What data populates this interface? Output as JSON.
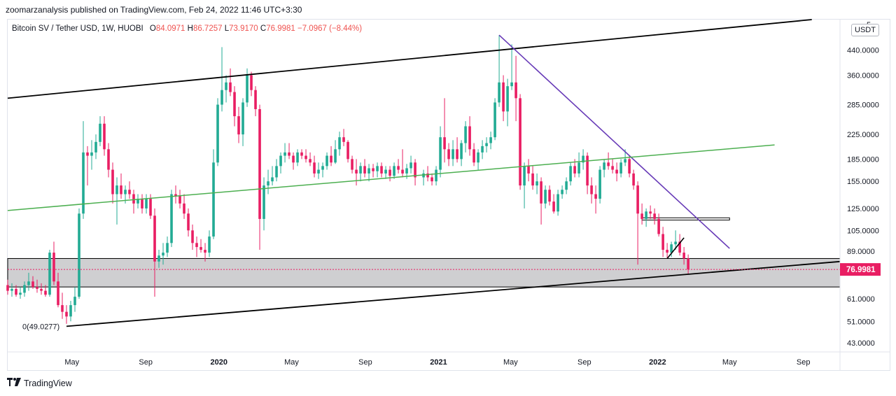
{
  "header": {
    "publisher_line": "zoomarzanalysis published on TradingView.com, Feb 24, 2022 11:46 UTC+3:30"
  },
  "legend": {
    "symbol": "Bitcoin SV / Tether USD, 1W, HUOBI",
    "open_label": "O",
    "open": "84.0971",
    "high_label": "H",
    "high": "86.7257",
    "low_label": "L",
    "low": "73.9170",
    "close_label": "C",
    "close": "76.9981",
    "change": "−7.0967 (−8.44%)"
  },
  "currency_button": "USDT",
  "footer": {
    "brand": "TradingView",
    "logo": "tradingview-logo"
  },
  "colors": {
    "up": "#22ab94",
    "down": "#ef5350",
    "downBody": "#e91e63",
    "channel": "#000000",
    "trend": "#673ab7",
    "green_line": "#4caf50",
    "zone": "#cfcfd1",
    "last_price_bg": "#e91e63"
  },
  "chart_data": {
    "type": "candlestick",
    "symbol": "Bitcoin SV / Tether USD",
    "exchange": "HUOBI",
    "interval": "1W",
    "y_scale": "log",
    "ylim": [
      40,
      560
    ],
    "y_ticks": [
      "440.0000",
      "360.0000",
      "285.0000",
      "225.0000",
      "185.0000",
      "155.0000",
      "125.0000",
      "105.0000",
      "89.0000",
      "75.0000",
      "61.0000",
      "51.0000",
      "43.0000"
    ],
    "y_tick_values": [
      440,
      360,
      285,
      225,
      185,
      155,
      125,
      105,
      89,
      75,
      61,
      51,
      43
    ],
    "top_tick_partial": "5",
    "x_ticks": [
      "May",
      "Sep",
      "2020",
      "May",
      "Sep",
      "2021",
      "May",
      "Sep",
      "2022",
      "May",
      "Sep"
    ],
    "x_tick_dates": [
      "2019-05-01",
      "2019-09-01",
      "2020-01-01",
      "2020-05-01",
      "2020-09-01",
      "2021-01-01",
      "2021-05-01",
      "2021-09-01",
      "2022-01-01",
      "2022-05-01",
      "2022-09-01"
    ],
    "x_bold": [
      false,
      false,
      true,
      false,
      false,
      true,
      false,
      false,
      true,
      false,
      false
    ],
    "x_range": [
      "2019-01-14",
      "2022-11-01"
    ],
    "last_price_label": "76.9981",
    "low_marker_label": "0(49.0277)",
    "candles": [
      [
        "2019-01-14",
        68,
        71,
        63,
        65
      ],
      [
        "2019-01-21",
        65,
        69,
        62,
        66
      ],
      [
        "2019-01-28",
        66,
        68,
        62,
        63
      ],
      [
        "2019-02-04",
        63,
        67,
        61,
        64
      ],
      [
        "2019-02-11",
        64,
        70,
        62,
        68
      ],
      [
        "2019-02-18",
        68,
        75,
        65,
        70
      ],
      [
        "2019-02-25",
        70,
        73,
        66,
        67
      ],
      [
        "2019-03-04",
        67,
        71,
        64,
        66
      ],
      [
        "2019-03-11",
        66,
        69,
        63,
        65
      ],
      [
        "2019-03-18",
        65,
        68,
        62,
        63
      ],
      [
        "2019-03-25",
        63,
        90,
        62,
        88
      ],
      [
        "2019-04-01",
        88,
        96,
        68,
        70
      ],
      [
        "2019-04-08",
        70,
        75,
        57,
        58
      ],
      [
        "2019-04-15",
        58,
        64,
        52,
        55
      ],
      [
        "2019-04-22",
        55,
        58,
        50,
        53
      ],
      [
        "2019-04-29",
        53,
        60,
        51,
        58
      ],
      [
        "2019-05-06",
        58,
        67,
        55,
        62
      ],
      [
        "2019-05-13",
        62,
        125,
        61,
        120
      ],
      [
        "2019-05-20",
        120,
        250,
        115,
        195
      ],
      [
        "2019-05-27",
        195,
        205,
        150,
        190
      ],
      [
        "2019-06-03",
        190,
        215,
        170,
        195
      ],
      [
        "2019-06-10",
        195,
        225,
        185,
        212
      ],
      [
        "2019-06-17",
        212,
        260,
        205,
        245
      ],
      [
        "2019-06-24",
        245,
        260,
        190,
        200
      ],
      [
        "2019-07-01",
        200,
        210,
        160,
        170
      ],
      [
        "2019-07-08",
        170,
        180,
        130,
        140
      ],
      [
        "2019-07-15",
        140,
        160,
        110,
        150
      ],
      [
        "2019-07-22",
        150,
        165,
        135,
        140
      ],
      [
        "2019-07-29",
        140,
        150,
        130,
        145
      ],
      [
        "2019-08-05",
        145,
        155,
        135,
        140
      ],
      [
        "2019-08-12",
        140,
        145,
        120,
        130
      ],
      [
        "2019-08-19",
        130,
        140,
        125,
        135
      ],
      [
        "2019-08-26",
        135,
        140,
        120,
        125
      ],
      [
        "2019-09-02",
        125,
        140,
        120,
        135
      ],
      [
        "2019-09-09",
        135,
        140,
        115,
        118
      ],
      [
        "2019-09-16",
        118,
        125,
        62,
        82
      ],
      [
        "2019-09-23",
        82,
        90,
        78,
        86
      ],
      [
        "2019-09-30",
        86,
        95,
        80,
        88
      ],
      [
        "2019-10-07",
        88,
        100,
        85,
        95
      ],
      [
        "2019-10-14",
        95,
        145,
        92,
        140
      ],
      [
        "2019-10-21",
        140,
        150,
        130,
        138
      ],
      [
        "2019-10-28",
        138,
        145,
        125,
        130
      ],
      [
        "2019-11-04",
        130,
        140,
        115,
        120
      ],
      [
        "2019-11-11",
        120,
        125,
        100,
        105
      ],
      [
        "2019-11-18",
        105,
        110,
        90,
        95
      ],
      [
        "2019-11-25",
        95,
        100,
        85,
        92
      ],
      [
        "2019-12-02",
        92,
        98,
        88,
        90
      ],
      [
        "2019-12-09",
        90,
        95,
        82,
        88
      ],
      [
        "2019-12-16",
        88,
        105,
        85,
        100
      ],
      [
        "2019-12-23",
        100,
        200,
        98,
        180
      ],
      [
        "2019-12-30",
        180,
        300,
        175,
        285
      ],
      [
        "2020-01-06",
        285,
        450,
        270,
        320
      ],
      [
        "2020-01-13",
        320,
        360,
        290,
        340
      ],
      [
        "2020-01-20",
        340,
        380,
        305,
        315
      ],
      [
        "2020-01-27",
        315,
        330,
        240,
        260
      ],
      [
        "2020-02-03",
        260,
        280,
        210,
        225
      ],
      [
        "2020-02-10",
        225,
        300,
        205,
        290
      ],
      [
        "2020-02-17",
        290,
        380,
        280,
        360
      ],
      [
        "2020-02-24",
        360,
        370,
        305,
        320
      ],
      [
        "2020-03-02",
        320,
        330,
        260,
        275
      ],
      [
        "2020-03-09",
        275,
        285,
        90,
        115
      ],
      [
        "2020-03-16",
        115,
        160,
        105,
        150
      ],
      [
        "2020-03-23",
        150,
        170,
        140,
        155
      ],
      [
        "2020-03-30",
        155,
        175,
        150,
        160
      ],
      [
        "2020-04-06",
        160,
        185,
        155,
        175
      ],
      [
        "2020-04-13",
        175,
        195,
        165,
        190
      ],
      [
        "2020-04-20",
        190,
        210,
        180,
        195
      ],
      [
        "2020-04-27",
        195,
        210,
        185,
        190
      ],
      [
        "2020-05-04",
        190,
        195,
        170,
        180
      ],
      [
        "2020-05-11",
        180,
        200,
        175,
        195
      ],
      [
        "2020-05-18",
        195,
        200,
        185,
        190
      ],
      [
        "2020-05-25",
        190,
        200,
        180,
        185
      ],
      [
        "2020-06-01",
        185,
        195,
        175,
        180
      ],
      [
        "2020-06-08",
        180,
        190,
        160,
        165
      ],
      [
        "2020-06-15",
        165,
        180,
        158,
        170
      ],
      [
        "2020-06-22",
        170,
        180,
        160,
        175
      ],
      [
        "2020-06-29",
        175,
        195,
        170,
        190
      ],
      [
        "2020-07-06",
        190,
        205,
        175,
        180
      ],
      [
        "2020-07-13",
        180,
        215,
        178,
        200
      ],
      [
        "2020-07-20",
        200,
        230,
        190,
        220
      ],
      [
        "2020-07-27",
        220,
        235,
        205,
        212
      ],
      [
        "2020-08-03",
        212,
        215,
        180,
        185
      ],
      [
        "2020-08-10",
        185,
        190,
        165,
        170
      ],
      [
        "2020-08-17",
        170,
        185,
        150,
        165
      ],
      [
        "2020-08-24",
        165,
        180,
        155,
        175
      ],
      [
        "2020-08-31",
        175,
        185,
        160,
        165
      ],
      [
        "2020-09-07",
        165,
        178,
        155,
        172
      ],
      [
        "2020-09-14",
        172,
        178,
        160,
        168
      ],
      [
        "2020-09-21",
        168,
        180,
        160,
        175
      ],
      [
        "2020-09-28",
        175,
        180,
        160,
        165
      ],
      [
        "2020-10-05",
        165,
        175,
        158,
        170
      ],
      [
        "2020-10-12",
        170,
        175,
        155,
        162
      ],
      [
        "2020-10-19",
        162,
        180,
        158,
        175
      ],
      [
        "2020-10-26",
        175,
        185,
        165,
        170
      ],
      [
        "2020-11-02",
        170,
        200,
        160,
        165
      ],
      [
        "2020-11-09",
        165,
        178,
        158,
        172
      ],
      [
        "2020-11-16",
        172,
        190,
        165,
        180
      ],
      [
        "2020-11-23",
        180,
        185,
        150,
        160
      ],
      [
        "2020-12-07",
        160,
        170,
        150,
        165
      ],
      [
        "2020-12-14",
        165,
        175,
        155,
        160
      ],
      [
        "2020-12-21",
        160,
        165,
        150,
        155
      ],
      [
        "2020-12-28",
        155,
        175,
        150,
        170
      ],
      [
        "2021-01-04",
        170,
        240,
        160,
        220
      ],
      [
        "2021-01-11",
        220,
        300,
        180,
        200
      ],
      [
        "2021-01-18",
        200,
        210,
        175,
        185
      ],
      [
        "2021-01-25",
        185,
        215,
        175,
        200
      ],
      [
        "2021-02-01",
        200,
        220,
        180,
        185
      ],
      [
        "2021-02-08",
        185,
        215,
        175,
        210
      ],
      [
        "2021-02-15",
        210,
        250,
        195,
        240
      ],
      [
        "2021-02-22",
        240,
        260,
        190,
        200
      ],
      [
        "2021-03-01",
        200,
        210,
        175,
        180
      ],
      [
        "2021-03-08",
        180,
        200,
        170,
        195
      ],
      [
        "2021-03-15",
        195,
        215,
        185,
        205
      ],
      [
        "2021-03-22",
        205,
        220,
        195,
        210
      ],
      [
        "2021-03-29",
        210,
        230,
        200,
        220
      ],
      [
        "2021-04-05",
        220,
        300,
        215,
        290
      ],
      [
        "2021-04-12",
        290,
        495,
        280,
        340
      ],
      [
        "2021-04-19",
        340,
        360,
        250,
        270
      ],
      [
        "2021-04-26",
        270,
        350,
        240,
        330
      ],
      [
        "2021-05-03",
        330,
        460,
        320,
        340
      ],
      [
        "2021-05-10",
        340,
        420,
        250,
        300
      ],
      [
        "2021-05-17",
        300,
        310,
        145,
        150
      ],
      [
        "2021-05-24",
        150,
        180,
        125,
        175
      ],
      [
        "2021-05-31",
        175,
        185,
        155,
        165
      ],
      [
        "2021-06-07",
        165,
        175,
        145,
        150
      ],
      [
        "2021-06-14",
        150,
        165,
        140,
        155
      ],
      [
        "2021-06-21",
        155,
        160,
        110,
        130
      ],
      [
        "2021-06-28",
        130,
        150,
        125,
        145
      ],
      [
        "2021-07-05",
        145,
        150,
        128,
        132
      ],
      [
        "2021-07-12",
        132,
        140,
        120,
        122
      ],
      [
        "2021-07-19",
        122,
        145,
        118,
        140
      ],
      [
        "2021-07-26",
        140,
        150,
        135,
        145
      ],
      [
        "2021-08-02",
        145,
        160,
        140,
        155
      ],
      [
        "2021-08-09",
        155,
        180,
        150,
        175
      ],
      [
        "2021-08-16",
        175,
        185,
        160,
        165
      ],
      [
        "2021-08-23",
        165,
        195,
        160,
        180
      ],
      [
        "2021-08-30",
        180,
        200,
        170,
        190
      ],
      [
        "2021-09-06",
        190,
        195,
        140,
        150
      ],
      [
        "2021-09-13",
        150,
        160,
        130,
        140
      ],
      [
        "2021-09-20",
        140,
        150,
        120,
        135
      ],
      [
        "2021-09-27",
        135,
        175,
        130,
        170
      ],
      [
        "2021-10-04",
        170,
        185,
        160,
        180
      ],
      [
        "2021-10-11",
        180,
        195,
        170,
        175
      ],
      [
        "2021-10-18",
        175,
        185,
        165,
        170
      ],
      [
        "2021-10-25",
        170,
        180,
        155,
        165
      ],
      [
        "2021-11-01",
        165,
        185,
        160,
        180
      ],
      [
        "2021-11-08",
        180,
        200,
        175,
        185
      ],
      [
        "2021-11-15",
        185,
        190,
        160,
        165
      ],
      [
        "2021-11-22",
        165,
        170,
        145,
        150
      ],
      [
        "2021-11-29",
        150,
        155,
        80,
        120
      ],
      [
        "2021-12-06",
        120,
        130,
        110,
        115
      ],
      [
        "2021-12-13",
        115,
        125,
        108,
        122
      ],
      [
        "2021-12-20",
        122,
        128,
        115,
        120
      ],
      [
        "2021-12-27",
        120,
        125,
        110,
        115
      ],
      [
        "2022-01-03",
        115,
        120,
        100,
        102
      ],
      [
        "2022-01-10",
        102,
        108,
        85,
        90
      ],
      [
        "2022-01-17",
        90,
        95,
        84,
        88
      ],
      [
        "2022-01-24",
        88,
        96,
        85,
        94
      ],
      [
        "2022-01-31",
        94,
        105,
        90,
        96
      ],
      [
        "2022-02-07",
        96,
        102,
        86,
        88
      ],
      [
        "2022-02-14",
        88,
        92,
        80,
        84
      ],
      [
        "2022-02-21",
        84.0971,
        86.7257,
        73.917,
        76.9981
      ]
    ],
    "annotations": [
      {
        "type": "channel-upper-line",
        "from": [
          "2019-01-14",
          300
        ],
        "to": [
          "2022-09-15",
          560
        ]
      },
      {
        "type": "channel-lower-line",
        "from": [
          "2019-04-22",
          49.0277
        ],
        "to": [
          "2022-11-01",
          82
        ]
      },
      {
        "type": "descending-trendline",
        "from": [
          "2021-04-12",
          495
        ],
        "to": [
          "2022-05-01",
          91
        ]
      },
      {
        "type": "green-trendline",
        "from": [
          "2019-01-14",
          123
        ],
        "to": [
          "2022-07-15",
          207
        ]
      },
      {
        "type": "support-zone",
        "from_date": "2019-01-14",
        "to_date": "2022-11-01",
        "low": 67,
        "high": 84
      },
      {
        "type": "resistance-zone",
        "from_date": "2021-12-06",
        "to_date": "2022-05-01",
        "low": 114,
        "high": 116
      },
      {
        "type": "short-black-line",
        "from": [
          "2022-01-17",
          84
        ],
        "to": [
          "2022-02-14",
          99
        ]
      },
      {
        "type": "last-price-line",
        "value": 76.9981
      }
    ]
  }
}
